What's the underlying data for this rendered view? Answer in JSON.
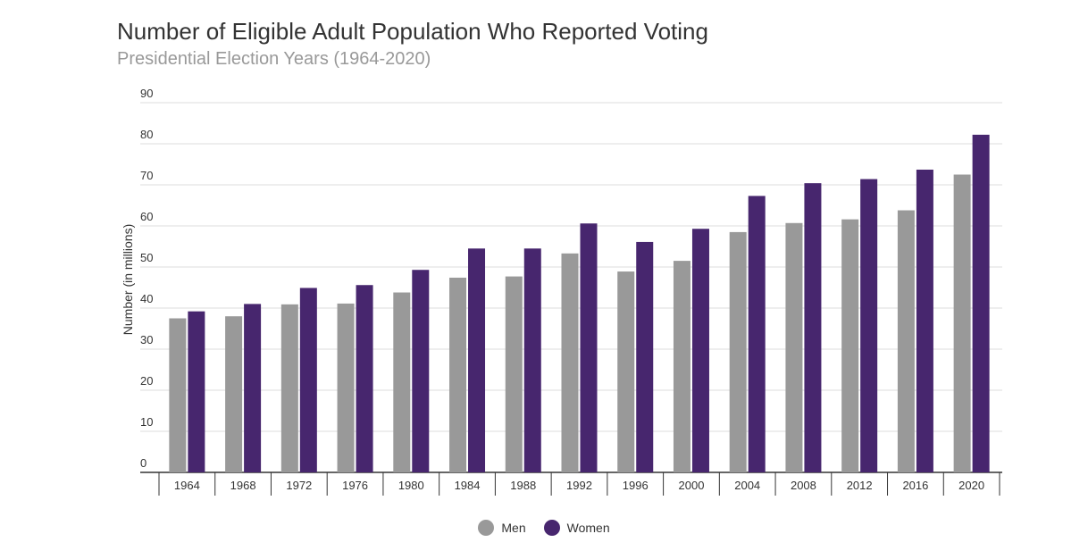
{
  "chart_data": {
    "type": "bar",
    "title": "Number of Eligible Adult Population Who Reported Voting",
    "subtitle": "Presidential Election Years (1964-2020)",
    "xlabel": "",
    "ylabel": "Number (in millions)",
    "ylim": [
      0,
      90
    ],
    "yticks": [
      0,
      10,
      20,
      30,
      40,
      50,
      60,
      70,
      80,
      90
    ],
    "grid": true,
    "legend_position": "bottom",
    "categories": [
      "1964",
      "1968",
      "1972",
      "1976",
      "1980",
      "1984",
      "1988",
      "1992",
      "1996",
      "2000",
      "2004",
      "2008",
      "2012",
      "2016",
      "2020"
    ],
    "series": [
      {
        "name": "Men",
        "color": "#999999",
        "values": [
          37.5,
          38.0,
          40.9,
          41.1,
          43.8,
          47.4,
          47.7,
          53.3,
          48.9,
          51.5,
          58.5,
          60.7,
          61.6,
          63.8,
          72.5
        ]
      },
      {
        "name": "Women",
        "color": "#47266e",
        "values": [
          39.2,
          41.0,
          44.9,
          45.6,
          49.3,
          54.5,
          54.5,
          60.6,
          56.1,
          59.3,
          67.3,
          70.4,
          71.4,
          73.7,
          82.2
        ]
      }
    ]
  }
}
